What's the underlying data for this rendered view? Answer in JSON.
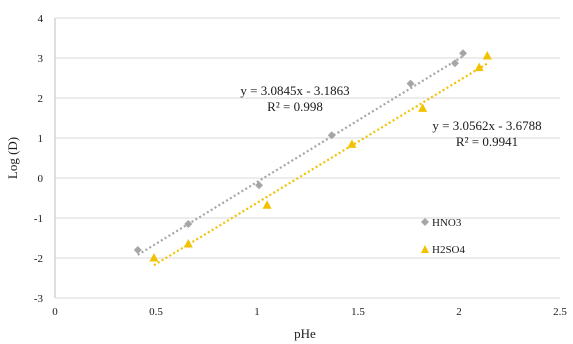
{
  "chart_data": {
    "type": "scatter",
    "title": "",
    "xlabel": "pHe",
    "ylabel": "Log (D)",
    "xlim": [
      0,
      2.5
    ],
    "ylim": [
      -3,
      4
    ],
    "xticks": [
      0,
      0.5,
      1,
      1.5,
      2,
      2.5
    ],
    "yticks": [
      -3,
      -2,
      -1,
      0,
      1,
      2,
      3,
      4
    ],
    "xtick_labels": [
      "0",
      "0.5",
      "1",
      "1.5",
      "2",
      "2.5"
    ],
    "ytick_labels": [
      "-3",
      "-2",
      "-1",
      "0",
      "1",
      "2",
      "3",
      "4"
    ],
    "grid": "horizontal",
    "legend_position": "right",
    "series": [
      {
        "name": "HNO3",
        "color": "#a6a6a6",
        "marker": "diamond",
        "x": [
          0.41,
          0.66,
          1.01,
          1.37,
          1.76,
          1.98,
          2.02
        ],
        "y": [
          -1.8,
          -1.15,
          -0.18,
          1.07,
          2.36,
          2.87,
          3.12
        ],
        "trendline": {
          "slope": 3.0845,
          "intercept": -3.1863,
          "x_range": [
            0.41,
            2.02
          ],
          "equation": "y = 3.0845x - 3.1863",
          "r2": "R² = 0.998"
        }
      },
      {
        "name": "H2SO4",
        "color": "#f2c200",
        "marker": "triangle",
        "x": [
          0.49,
          0.66,
          1.05,
          1.47,
          1.82,
          2.1,
          2.14
        ],
        "y": [
          -2.0,
          -1.65,
          -0.68,
          0.84,
          1.74,
          2.76,
          3.05
        ],
        "trendline": {
          "slope": 3.0562,
          "intercept": -3.6788,
          "x_range": [
            0.49,
            2.14
          ],
          "equation": "y = 3.0562x - 3.6788",
          "r2": "R² = 0.9941"
        }
      }
    ]
  }
}
